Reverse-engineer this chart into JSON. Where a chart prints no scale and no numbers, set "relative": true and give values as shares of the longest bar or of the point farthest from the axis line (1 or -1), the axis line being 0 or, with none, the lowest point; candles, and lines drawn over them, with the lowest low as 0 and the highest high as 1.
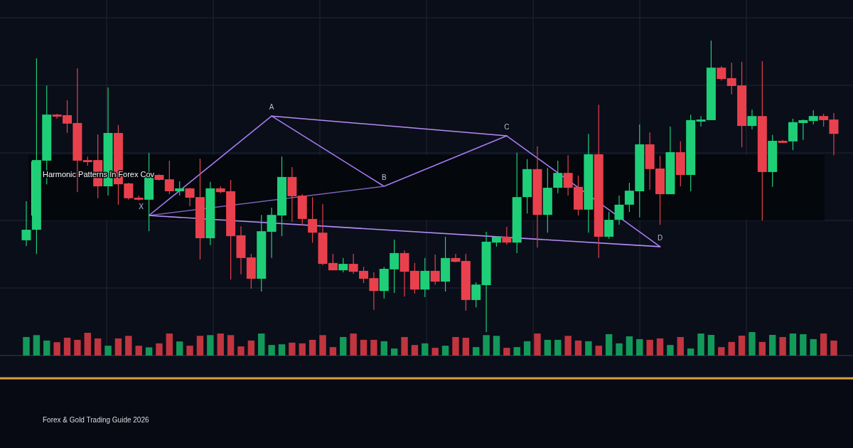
{
  "chart_data": [
    {
      "type": "candlestick",
      "title": "Harmonic Patterns In Forex Cov",
      "relative": true,
      "grid": true,
      "categories": [
        null,
        null,
        null,
        null,
        null,
        null,
        null,
        null,
        null,
        null,
        null,
        null,
        null,
        null,
        null,
        null,
        null,
        null,
        null,
        null,
        null,
        null,
        null,
        null,
        null,
        null,
        null,
        null,
        null,
        null,
        null,
        null,
        null,
        null,
        null,
        null,
        null,
        null,
        null,
        null,
        null,
        null,
        null,
        null,
        null,
        null,
        null,
        null,
        null,
        null,
        null,
        null,
        null,
        null,
        null,
        null,
        null,
        null,
        null,
        null,
        null,
        null,
        null,
        null,
        null,
        null,
        null,
        null,
        null,
        null,
        null,
        null,
        null,
        null,
        null,
        null,
        null,
        null,
        null,
        null
      ],
      "ohlc": [
        [
          0.315,
          0.449,
          0.295,
          0.351
        ],
        [
          0.351,
          0.939,
          0.268,
          0.59
        ],
        [
          0.588,
          0.846,
          0.507,
          0.746
        ],
        [
          0.746,
          0.749,
          0.732,
          0.739
        ],
        [
          0.744,
          0.795,
          0.683,
          0.715
        ],
        [
          0.717,
          0.905,
          0.48,
          0.588
        ],
        [
          0.59,
          0.602,
          0.571,
          0.583
        ],
        [
          0.59,
          0.678,
          0.459,
          0.5
        ],
        [
          0.5,
          0.839,
          0.468,
          0.683
        ],
        [
          0.683,
          0.71,
          0.437,
          0.507
        ],
        [
          0.51,
          0.512,
          0.454,
          0.459
        ],
        [
          0.461,
          0.468,
          0.451,
          0.454
        ],
        [
          0.454,
          0.615,
          0.346,
          0.539
        ],
        [
          0.539,
          0.541,
          0.52,
          0.522
        ],
        [
          0.524,
          0.588,
          0.473,
          0.483
        ],
        [
          0.483,
          0.517,
          0.468,
          0.493
        ],
        [
          0.493,
          0.495,
          0.432,
          0.461
        ],
        [
          0.463,
          0.595,
          0.249,
          0.322
        ],
        [
          0.322,
          0.515,
          0.298,
          0.493
        ],
        [
          0.493,
          0.5,
          0.476,
          0.48
        ],
        [
          0.483,
          0.522,
          0.18,
          0.329
        ],
        [
          0.332,
          0.363,
          0.198,
          0.254
        ],
        [
          0.256,
          0.268,
          0.149,
          0.183
        ],
        [
          0.183,
          0.402,
          0.139,
          0.346
        ],
        [
          0.344,
          0.427,
          0.254,
          0.402
        ],
        [
          0.4,
          0.602,
          0.329,
          0.532
        ],
        [
          0.532,
          0.566,
          0.378,
          0.466
        ],
        [
          0.468,
          0.473,
          0.366,
          0.388
        ],
        [
          0.388,
          0.463,
          0.307,
          0.341
        ],
        [
          0.341,
          0.439,
          0.229,
          0.234
        ],
        [
          0.237,
          0.268,
          0.212,
          0.212
        ],
        [
          0.212,
          0.254,
          0.205,
          0.234
        ],
        [
          0.234,
          0.268,
          0.2,
          0.207
        ],
        [
          0.21,
          0.224,
          0.168,
          0.183
        ],
        [
          0.185,
          0.205,
          0.076,
          0.141
        ],
        [
          0.141,
          0.224,
          0.115,
          0.217
        ],
        [
          0.215,
          0.317,
          0.134,
          0.271
        ],
        [
          0.271,
          0.28,
          0.122,
          0.207
        ],
        [
          0.21,
          0.237,
          0.132,
          0.146
        ],
        [
          0.146,
          0.254,
          0.12,
          0.21
        ],
        [
          0.21,
          0.266,
          0.163,
          0.173
        ],
        [
          0.173,
          0.327,
          0.139,
          0.254
        ],
        [
          0.254,
          0.268,
          0.239,
          0.241
        ],
        [
          0.244,
          0.268,
          0.073,
          0.11
        ],
        [
          0.11,
          0.171,
          0.085,
          0.163
        ],
        [
          0.161,
          0.344,
          0,
          0.31
        ],
        [
          0.307,
          0.329,
          0.293,
          0.327
        ],
        [
          0.327,
          0.361,
          0.3,
          0.307
        ],
        [
          0.307,
          0.615,
          0.271,
          0.463
        ],
        [
          0.463,
          0.593,
          0.407,
          0.559
        ],
        [
          0.559,
          0.637,
          0.29,
          0.402
        ],
        [
          0.402,
          0.563,
          0.341,
          0.495
        ],
        [
          0.495,
          0.588,
          0.476,
          0.546
        ],
        [
          0.546,
          0.607,
          0.468,
          0.495
        ],
        [
          0.498,
          0.537,
          0.4,
          0.42
        ],
        [
          0.42,
          0.68,
          0.341,
          0.61
        ],
        [
          0.61,
          0.78,
          0.254,
          0.327
        ],
        [
          0.327,
          0.412,
          0.32,
          0.385
        ],
        [
          0.385,
          0.468,
          0.368,
          0.437
        ],
        [
          0.437,
          0.512,
          0.412,
          0.485
        ],
        [
          0.483,
          0.712,
          0.393,
          0.644
        ],
        [
          0.644,
          0.685,
          0.488,
          0.559
        ],
        [
          0.561,
          0.605,
          0.368,
          0.473
        ],
        [
          0.473,
          0.705,
          0.473,
          0.617
        ],
        [
          0.617,
          0.654,
          0.5,
          0.539
        ],
        [
          0.539,
          0.746,
          0.483,
          0.727
        ],
        [
          0.722,
          0.741,
          0.705,
          0.729
        ],
        [
          0.727,
          1,
          0.727,
          0.907
        ],
        [
          0.907,
          0.912,
          0.863,
          0.868
        ],
        [
          0.871,
          0.924,
          0.815,
          0.844
        ],
        [
          0.846,
          0.927,
          0.634,
          0.707
        ],
        [
          0.707,
          0.763,
          0.695,
          0.741
        ],
        [
          0.741,
          0.929,
          0.383,
          0.549
        ],
        [
          0.549,
          0.676,
          0.498,
          0.656
        ],
        [
          0.656,
          0.659,
          0.649,
          0.649
        ],
        [
          0.654,
          0.732,
          0.624,
          0.72
        ],
        [
          0.717,
          0.729,
          0.659,
          0.727
        ],
        [
          0.724,
          0.761,
          0.712,
          0.741
        ],
        [
          0.741,
          0.749,
          0.705,
          0.727
        ],
        [
          0.729,
          0.751,
          0.607,
          0.68
        ]
      ],
      "colors": [
        "#1ecf78",
        "#1ecf78",
        "#1ecf78",
        "#e8414d",
        "#e8414d",
        "#e8414d",
        "#e8414d",
        "#e8414d",
        "#1ecf78",
        "#e8414d",
        "#e8414d",
        "#e8414d",
        "#1ecf78",
        "#e8414d",
        "#e8414d",
        "#1ecf78",
        "#e8414d",
        "#e8414d",
        "#1ecf78",
        "#e8414d",
        "#e8414d",
        "#e8414d",
        "#e8414d",
        "#1ecf78",
        "#1ecf78",
        "#1ecf78",
        "#e8414d",
        "#e8414d",
        "#e8414d",
        "#e8414d",
        "#e8414d",
        "#1ecf78",
        "#e8414d",
        "#e8414d",
        "#e8414d",
        "#1ecf78",
        "#1ecf78",
        "#e8414d",
        "#e8414d",
        "#1ecf78",
        "#e8414d",
        "#1ecf78",
        "#e8414d",
        "#e8414d",
        "#1ecf78",
        "#1ecf78",
        "#1ecf78",
        "#e8414d",
        "#1ecf78",
        "#1ecf78",
        "#e8414d",
        "#1ecf78",
        "#1ecf78",
        "#e8414d",
        "#e8414d",
        "#1ecf78",
        "#e8414d",
        "#1ecf78",
        "#1ecf78",
        "#1ecf78",
        "#1ecf78",
        "#e8414d",
        "#e8414d",
        "#1ecf78",
        "#e8414d",
        "#1ecf78",
        "#1ecf78",
        "#1ecf78",
        "#e8414d",
        "#e8414d",
        "#e8414d",
        "#1ecf78",
        "#e8414d",
        "#1ecf78",
        "#e8414d",
        "#1ecf78",
        "#1ecf78",
        "#1ecf78",
        "#e8414d",
        "#e8414d"
      ],
      "series": [
        {
          "type": "line",
          "color": "#a77bf3",
          "values": [
            null,
            null,
            null,
            null,
            null,
            null,
            null,
            null,
            null,
            null,
            null,
            null,
            0.4,
            null,
            null,
            null,
            null,
            null,
            null,
            null,
            null,
            null,
            null,
            null,
            0.741,
            null,
            null,
            null,
            null,
            null,
            null,
            null,
            null,
            null,
            null,
            0.5,
            null,
            null,
            null,
            null,
            null,
            null,
            null,
            null,
            null,
            null,
            null,
            0.673,
            null,
            null,
            null,
            null,
            null,
            null,
            null,
            null,
            null,
            null,
            null,
            null,
            null,
            null,
            0.293,
            null,
            null,
            null,
            null,
            null,
            null,
            null,
            null,
            null,
            null,
            null,
            null,
            null,
            null,
            null,
            null,
            null
          ]
        },
        {
          "type": "line",
          "color": "#7a62b8",
          "values": [
            null,
            null,
            null,
            null,
            null,
            null,
            null,
            null,
            null,
            null,
            null,
            null,
            0.4,
            null,
            null,
            null,
            null,
            null,
            null,
            null,
            null,
            null,
            null,
            null,
            null,
            null,
            null,
            null,
            null,
            null,
            null,
            null,
            null,
            null,
            null,
            0.5,
            null,
            null,
            null,
            null,
            null,
            null,
            null,
            null,
            null,
            null,
            null,
            null,
            null,
            null,
            null,
            null,
            null,
            null,
            null,
            null,
            null,
            null,
            null,
            null,
            null,
            null,
            null,
            null,
            null,
            null,
            null,
            null,
            null,
            null,
            null,
            null,
            null,
            null,
            null,
            null,
            null,
            null,
            null,
            null
          ]
        },
        {
          "type": "line",
          "color": "#b58cf5",
          "values": [
            null,
            null,
            null,
            null,
            null,
            null,
            null,
            null,
            null,
            null,
            null,
            null,
            null,
            null,
            null,
            null,
            null,
            null,
            null,
            null,
            null,
            null,
            null,
            null,
            0.741,
            null,
            null,
            null,
            null,
            null,
            null,
            null,
            null,
            null,
            null,
            null,
            null,
            null,
            null,
            null,
            null,
            null,
            null,
            null,
            null,
            null,
            null,
            0.673,
            null,
            null,
            null,
            null,
            null,
            null,
            null,
            null,
            null,
            null,
            null,
            null,
            null,
            null,
            null,
            null,
            null,
            null,
            null,
            null,
            null,
            null,
            null,
            null,
            null,
            null,
            null,
            null,
            null,
            null,
            null,
            null
          ]
        },
        {
          "type": "line",
          "color": "#b58cf5",
          "values": [
            null,
            null,
            null,
            null,
            null,
            null,
            null,
            null,
            null,
            null,
            null,
            null,
            0.4,
            null,
            null,
            null,
            null,
            null,
            null,
            null,
            null,
            null,
            null,
            null,
            null,
            null,
            null,
            null,
            null,
            null,
            null,
            null,
            null,
            null,
            null,
            null,
            null,
            null,
            null,
            null,
            null,
            null,
            null,
            null,
            null,
            null,
            null,
            null,
            null,
            null,
            null,
            null,
            null,
            null,
            null,
            null,
            null,
            null,
            null,
            null,
            null,
            null,
            0.293,
            null,
            null,
            null,
            null,
            null,
            null,
            null,
            null,
            null,
            null,
            null,
            null,
            null,
            null,
            null,
            null,
            null
          ]
        }
      ],
      "annotations": [
        "X",
        "A",
        "B",
        "C",
        "D",
        "Forex & Gold Trading Guide 2026"
      ]
    },
    {
      "type": "bar",
      "relative": true,
      "categories": [
        null,
        null,
        null,
        null,
        null,
        null,
        null,
        null,
        null,
        null,
        null,
        null,
        null,
        null,
        null,
        null,
        null,
        null,
        null,
        null,
        null,
        null,
        null,
        null,
        null,
        null,
        null,
        null,
        null,
        null,
        null,
        null,
        null,
        null,
        null,
        null,
        null,
        null,
        null,
        null,
        null,
        null,
        null,
        null,
        null,
        null,
        null,
        null,
        null,
        null,
        null,
        null,
        null,
        null,
        null,
        null,
        null,
        null,
        null,
        null,
        null,
        null,
        null,
        null,
        null,
        null,
        null,
        null,
        null,
        null,
        null,
        null,
        null,
        null,
        null,
        null,
        null,
        null,
        null,
        null
      ],
      "values": [
        0.79,
        0.87,
        0.64,
        0.57,
        0.76,
        0.67,
        0.97,
        0.73,
        0.42,
        0.73,
        0.84,
        0.42,
        0.35,
        0.52,
        0.94,
        0.6,
        0.42,
        0.84,
        0.87,
        0.94,
        0.87,
        0.39,
        0.64,
        0.94,
        0.45,
        0.48,
        0.55,
        0.52,
        0.67,
        0.87,
        0.36,
        0.79,
        0.94,
        0.67,
        0.67,
        0.61,
        0.3,
        0.79,
        0.45,
        0.52,
        0.33,
        0.42,
        0.79,
        0.76,
        0.36,
        0.87,
        0.84,
        0.33,
        0.36,
        0.61,
        0.94,
        0.67,
        0.67,
        0.84,
        0.64,
        0.61,
        0.42,
        0.91,
        0.52,
        0.82,
        0.7,
        0.67,
        0.73,
        0.45,
        0.79,
        0.3,
        0.94,
        0.88,
        0.36,
        0.58,
        0.85,
        1,
        0.58,
        0.88,
        0.79,
        0.94,
        0.91,
        0.7,
        0.94,
        0.64
      ],
      "colors": [
        "#13995a",
        "#13995a",
        "#13995a",
        "#c0353f",
        "#c0353f",
        "#c0353f",
        "#c0353f",
        "#c0353f",
        "#13995a",
        "#c0353f",
        "#c0353f",
        "#c0353f",
        "#13995a",
        "#c0353f",
        "#c0353f",
        "#13995a",
        "#c0353f",
        "#c0353f",
        "#13995a",
        "#c0353f",
        "#c0353f",
        "#c0353f",
        "#c0353f",
        "#13995a",
        "#13995a",
        "#13995a",
        "#c0353f",
        "#c0353f",
        "#c0353f",
        "#c0353f",
        "#c0353f",
        "#13995a",
        "#c0353f",
        "#c0353f",
        "#c0353f",
        "#13995a",
        "#13995a",
        "#c0353f",
        "#c0353f",
        "#13995a",
        "#c0353f",
        "#13995a",
        "#c0353f",
        "#c0353f",
        "#13995a",
        "#13995a",
        "#13995a",
        "#c0353f",
        "#13995a",
        "#13995a",
        "#c0353f",
        "#13995a",
        "#13995a",
        "#c0353f",
        "#c0353f",
        "#13995a",
        "#c0353f",
        "#13995a",
        "#13995a",
        "#13995a",
        "#13995a",
        "#c0353f",
        "#c0353f",
        "#13995a",
        "#c0353f",
        "#13995a",
        "#13995a",
        "#13995a",
        "#c0353f",
        "#c0353f",
        "#c0353f",
        "#13995a",
        "#c0353f",
        "#13995a",
        "#c0353f",
        "#13995a",
        "#13995a",
        "#13995a",
        "#c0353f",
        "#c0353f"
      ]
    }
  ]
}
